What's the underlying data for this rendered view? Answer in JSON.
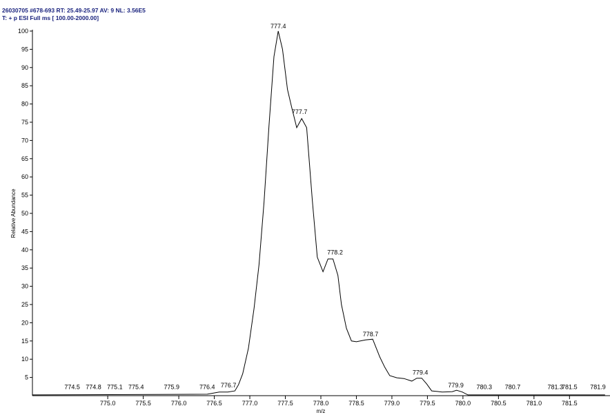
{
  "chart_data": {
    "type": "line",
    "header": [
      "26030705 #678-693 RT: 25.49-25.97 AV: 9 NL: 3.56E5",
      "T: + p ESI Full ms [ 100.00-2000.00]"
    ],
    "xlabel": "m/z",
    "ylabel": "Relative Abundance",
    "color": "#000000",
    "x": [
      773.94,
      776.4,
      776.57,
      776.69,
      776.79,
      776.84,
      776.9,
      776.98,
      777.06,
      777.13,
      777.2,
      777.27,
      777.34,
      777.4,
      777.46,
      777.53,
      777.59,
      777.66,
      777.73,
      777.8,
      777.88,
      777.95,
      778.03,
      778.1,
      778.17,
      778.24,
      778.29,
      778.36,
      778.43,
      778.5,
      778.63,
      778.73,
      778.83,
      778.9,
      778.97,
      779.07,
      779.17,
      779.28,
      779.35,
      779.42,
      779.49,
      779.56,
      779.71,
      779.85,
      779.91,
      779.99,
      780.07,
      782.0
    ],
    "values": [
      0.2,
      0.4,
      1,
      1,
      1.3,
      3,
      6,
      13,
      24,
      36,
      53,
      74,
      93,
      100,
      95,
      84,
      79,
      73.5,
      76,
      73.5,
      53.6,
      38,
      34,
      37.5,
      37.5,
      33,
      25,
      18.5,
      15,
      14.8,
      15.3,
      15.5,
      10.6,
      7.8,
      5.5,
      4.9,
      4.7,
      4,
      4.8,
      4.8,
      3.2,
      1.3,
      1,
      1.1,
      1.5,
      1,
      0.2,
      0.2
    ],
    "peak_labels": [
      {
        "x": 774.5,
        "y": 1
      },
      {
        "x": 774.8,
        "y": 1
      },
      {
        "x": 775.1,
        "y": 1
      },
      {
        "x": 775.4,
        "y": 1
      },
      {
        "x": 775.9,
        "y": 1
      },
      {
        "x": 776.4,
        "y": 1
      },
      {
        "x": 776.7,
        "y": 1.5
      },
      {
        "x": 777.4,
        "y": 100
      },
      {
        "x": 777.7,
        "y": 76.5
      },
      {
        "x": 778.2,
        "y": 38
      },
      {
        "x": 778.7,
        "y": 15.5
      },
      {
        "x": 779.4,
        "y": 5
      },
      {
        "x": 779.9,
        "y": 1.5
      },
      {
        "x": 780.3,
        "y": 1
      },
      {
        "x": 780.7,
        "y": 1
      },
      {
        "x": 781.3,
        "y": 1
      },
      {
        "x": 781.5,
        "y": 1
      },
      {
        "x": 781.9,
        "y": 1
      }
    ],
    "xlim": [
      773.94,
      782.07
    ],
    "ylim": [
      0,
      100
    ],
    "xticks": [
      {
        "value": 775,
        "label": "775.0"
      },
      {
        "value": 775.5,
        "label": "775.5"
      },
      {
        "value": 776,
        "label": "776.0"
      },
      {
        "value": 776.5,
        "label": "776.5"
      },
      {
        "value": 777,
        "label": "777.0"
      },
      {
        "value": 777.5,
        "label": "777.5"
      },
      {
        "value": 778,
        "label": "778.0"
      },
      {
        "value": 778.5,
        "label": "778.5"
      },
      {
        "value": 779,
        "label": "779.0"
      },
      {
        "value": 779.5,
        "label": "779.5"
      },
      {
        "value": 780,
        "label": "780.0"
      },
      {
        "value": 780.5,
        "label": "780.5"
      },
      {
        "value": 781,
        "label": "781.0"
      },
      {
        "value": 781.5,
        "label": "781.5"
      }
    ],
    "yticks": [
      5,
      10,
      15,
      20,
      25,
      30,
      35,
      40,
      45,
      50,
      55,
      60,
      65,
      70,
      75,
      80,
      85,
      90,
      95,
      100
    ]
  }
}
